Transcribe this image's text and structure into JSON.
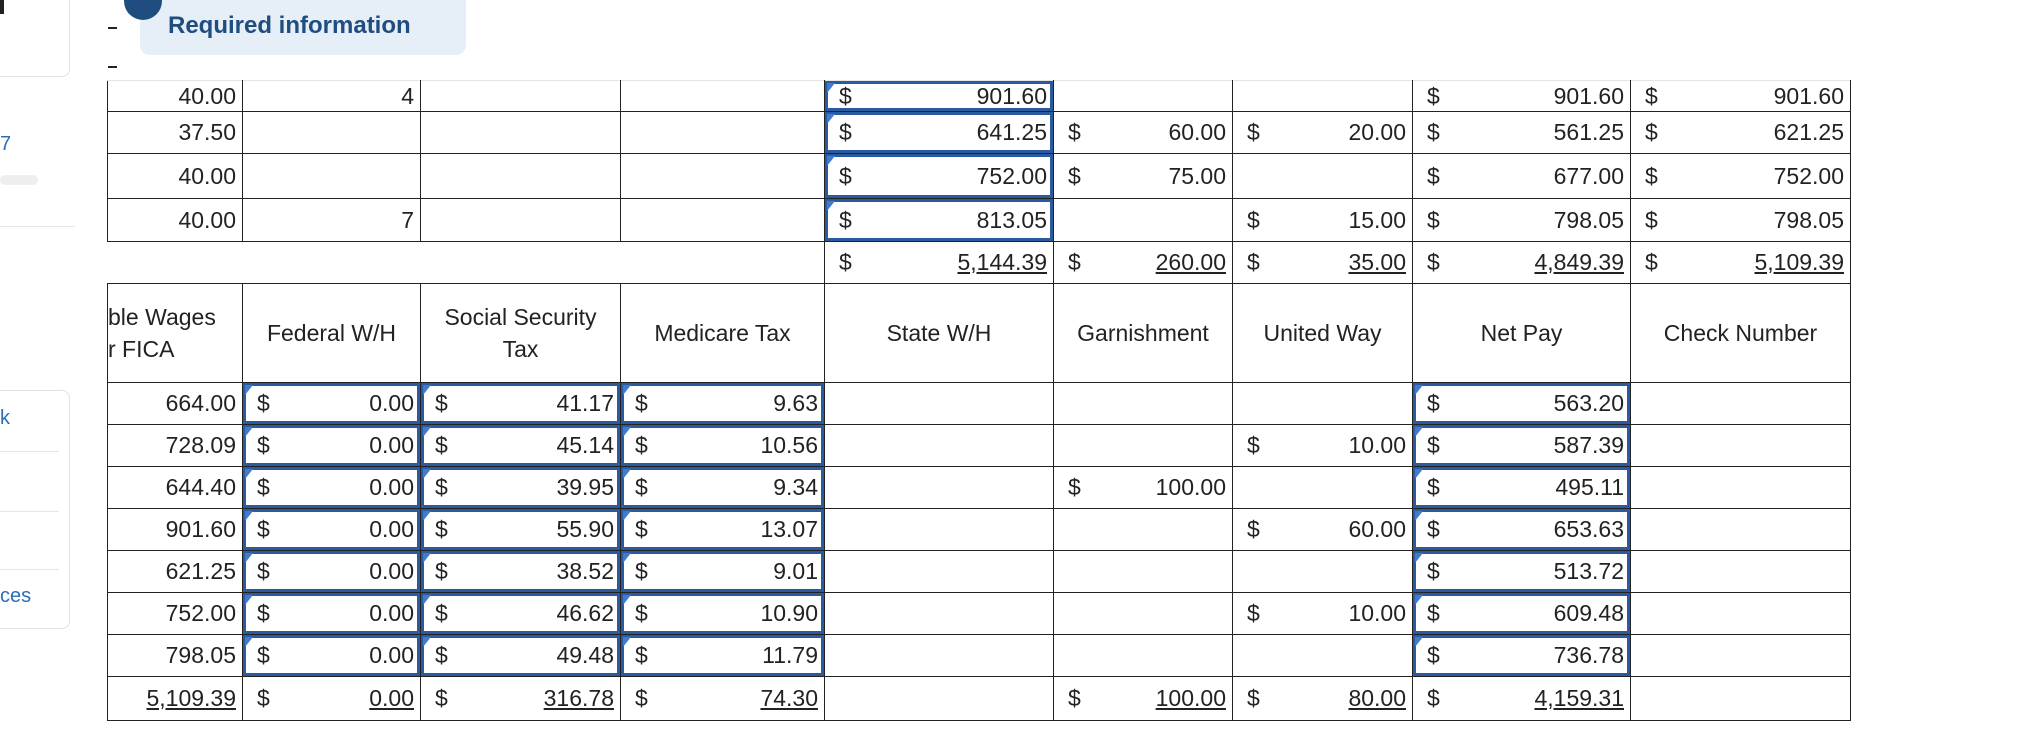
{
  "banner": {
    "title": "Required information"
  },
  "sidebar": {
    "items": [
      "7",
      "k",
      "ces"
    ]
  },
  "top_table": {
    "rows": [
      [
        "40.00",
        "4",
        null,
        null,
        [
          "$",
          "901.60"
        ],
        null,
        null,
        [
          "$",
          "901.60"
        ],
        [
          "$",
          "901.60"
        ]
      ],
      [
        "37.50",
        null,
        null,
        null,
        [
          "$",
          "641.25"
        ],
        [
          "$",
          "60.00"
        ],
        [
          "$",
          "20.00"
        ],
        [
          "$",
          "561.25"
        ],
        [
          "$",
          "621.25"
        ]
      ],
      [
        "40.00",
        null,
        null,
        null,
        [
          "$",
          "752.00"
        ],
        [
          "$",
          "75.00"
        ],
        null,
        [
          "$",
          "677.00"
        ],
        [
          "$",
          "752.00"
        ]
      ],
      [
        "40.00",
        "7",
        null,
        null,
        [
          "$",
          "813.05"
        ],
        null,
        [
          "$",
          "15.00"
        ],
        [
          "$",
          "798.05"
        ],
        [
          "$",
          "798.05"
        ]
      ]
    ],
    "totals": [
      null,
      null,
      null,
      null,
      [
        "$",
        "5,144.39"
      ],
      [
        "$",
        "260.00"
      ],
      [
        "$",
        "35.00"
      ],
      [
        "$",
        "4,849.39"
      ],
      [
        "$",
        "5,109.39"
      ]
    ]
  },
  "bottom_table": {
    "headers": [
      "ble Wages\nr FICA",
      "Federal W/H",
      "Social Security Tax",
      "Medicare Tax",
      "State W/H",
      "Garnishment",
      "United Way",
      "Net Pay",
      "Check Number"
    ],
    "rows": [
      [
        "664.00",
        [
          "$",
          "0.00"
        ],
        [
          "$",
          "41.17"
        ],
        [
          "$",
          "9.63"
        ],
        null,
        null,
        null,
        [
          "$",
          "563.20"
        ],
        null
      ],
      [
        "728.09",
        [
          "$",
          "0.00"
        ],
        [
          "$",
          "45.14"
        ],
        [
          "$",
          "10.56"
        ],
        null,
        null,
        [
          "$",
          "10.00"
        ],
        [
          "$",
          "587.39"
        ],
        null
      ],
      [
        "644.40",
        [
          "$",
          "0.00"
        ],
        [
          "$",
          "39.95"
        ],
        [
          "$",
          "9.34"
        ],
        null,
        [
          "$",
          "100.00"
        ],
        null,
        [
          "$",
          "495.11"
        ],
        null
      ],
      [
        "901.60",
        [
          "$",
          "0.00"
        ],
        [
          "$",
          "55.90"
        ],
        [
          "$",
          "13.07"
        ],
        null,
        null,
        [
          "$",
          "60.00"
        ],
        [
          "$",
          "653.63"
        ],
        null
      ],
      [
        "621.25",
        [
          "$",
          "0.00"
        ],
        [
          "$",
          "38.52"
        ],
        [
          "$",
          "9.01"
        ],
        null,
        null,
        null,
        [
          "$",
          "513.72"
        ],
        null
      ],
      [
        "752.00",
        [
          "$",
          "0.00"
        ],
        [
          "$",
          "46.62"
        ],
        [
          "$",
          "10.90"
        ],
        null,
        null,
        [
          "$",
          "10.00"
        ],
        [
          "$",
          "609.48"
        ],
        null
      ],
      [
        "798.05",
        [
          "$",
          "0.00"
        ],
        [
          "$",
          "49.48"
        ],
        [
          "$",
          "11.79"
        ],
        null,
        null,
        null,
        [
          "$",
          "736.78"
        ],
        null
      ]
    ],
    "totals": [
      "5,109.39",
      [
        "$",
        "0.00"
      ],
      [
        "$",
        "316.78"
      ],
      [
        "$",
        "74.30"
      ],
      null,
      [
        "$",
        "100.00"
      ],
      [
        "$",
        "80.00"
      ],
      [
        "$",
        "4,159.31"
      ],
      null
    ]
  }
}
